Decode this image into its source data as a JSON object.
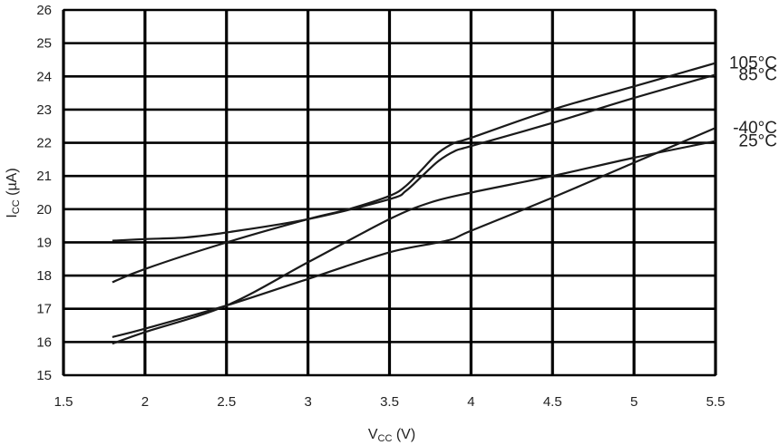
{
  "chart_data": {
    "type": "line",
    "title": "",
    "xlabel": "V",
    "xlabel_sub": "CC",
    "xlabel_unit": " (V)",
    "ylabel": "I",
    "ylabel_sub": "CC",
    "ylabel_unit": " (µA)",
    "xlim": [
      1.5,
      5.5
    ],
    "ylim": [
      15,
      26
    ],
    "xticks": [
      "1.5",
      "2",
      "2.5",
      "3",
      "3.5",
      "4",
      "4.5",
      "5",
      "5.5"
    ],
    "yticks": [
      "15",
      "16",
      "17",
      "18",
      "19",
      "20",
      "21",
      "22",
      "23",
      "24",
      "25",
      "26"
    ],
    "grid": true,
    "series": [
      {
        "name": "105°C",
        "x": [
          1.8,
          2.0,
          2.5,
          3.0,
          3.25,
          3.5,
          3.6,
          3.7,
          3.8,
          3.9,
          4.0,
          4.5,
          5.0,
          5.5
        ],
        "y": [
          17.8,
          18.2,
          19.0,
          19.7,
          20.0,
          20.4,
          20.7,
          21.2,
          21.7,
          22.0,
          22.15,
          23.0,
          23.7,
          24.4
        ]
      },
      {
        "name": "85°C",
        "x": [
          1.8,
          2.0,
          2.25,
          2.5,
          3.0,
          3.5,
          3.6,
          3.7,
          3.8,
          3.9,
          4.0,
          4.5,
          5.0,
          5.5
        ],
        "y": [
          19.05,
          19.1,
          19.15,
          19.3,
          19.7,
          20.3,
          20.55,
          21.0,
          21.45,
          21.75,
          21.9,
          22.6,
          23.35,
          24.05
        ]
      },
      {
        "name": "25°C",
        "x": [
          1.8,
          2.0,
          2.5,
          3.0,
          3.5,
          3.75,
          4.0,
          4.5,
          5.0,
          5.5
        ],
        "y": [
          15.95,
          16.3,
          17.1,
          18.4,
          19.7,
          20.2,
          20.5,
          21.0,
          21.55,
          22.05
        ]
      },
      {
        "name": "-40°C",
        "x": [
          1.8,
          2.0,
          2.5,
          3.0,
          3.5,
          3.85,
          4.0,
          4.5,
          5.0,
          5.5
        ],
        "y": [
          16.15,
          16.4,
          17.1,
          17.9,
          18.7,
          19.05,
          19.35,
          20.35,
          21.4,
          22.45
        ]
      }
    ],
    "annotations": [
      "105°C",
      "85°C",
      "25°C",
      "-40°C"
    ]
  }
}
